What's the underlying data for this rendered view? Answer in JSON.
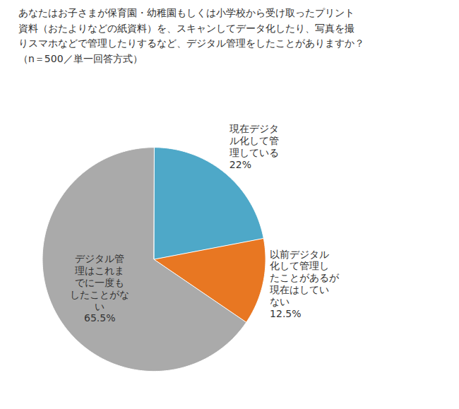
{
  "chart_data": {
    "type": "pie",
    "title": "あなたはお子さまが保育園・幼稚園もしくは小学校から受け取ったプリント\n資料（おたよりなどの紙資料）を、スキャンしてデータ化したり、写真を撮\nりスマホなどで管理したりするなど、デジタル管理をしたことがありますか？\n（n＝500／単一回答方式）",
    "categories": [
      "現在デジタ\nル化して管\n理している",
      "以前デジタル\n化して管理し\nたことがあるが\n現在はしてい\nない",
      "デジタル管\n理はこれま\nでに一度も\nしたことがな\nい"
    ],
    "values": [
      22.0,
      12.5,
      65.5
    ],
    "value_labels": [
      "22%",
      "12.5%",
      "65.5%"
    ],
    "colors": [
      "#4EA8C8",
      "#E87722",
      "#AAAAAA"
    ],
    "data_labels": true
  }
}
